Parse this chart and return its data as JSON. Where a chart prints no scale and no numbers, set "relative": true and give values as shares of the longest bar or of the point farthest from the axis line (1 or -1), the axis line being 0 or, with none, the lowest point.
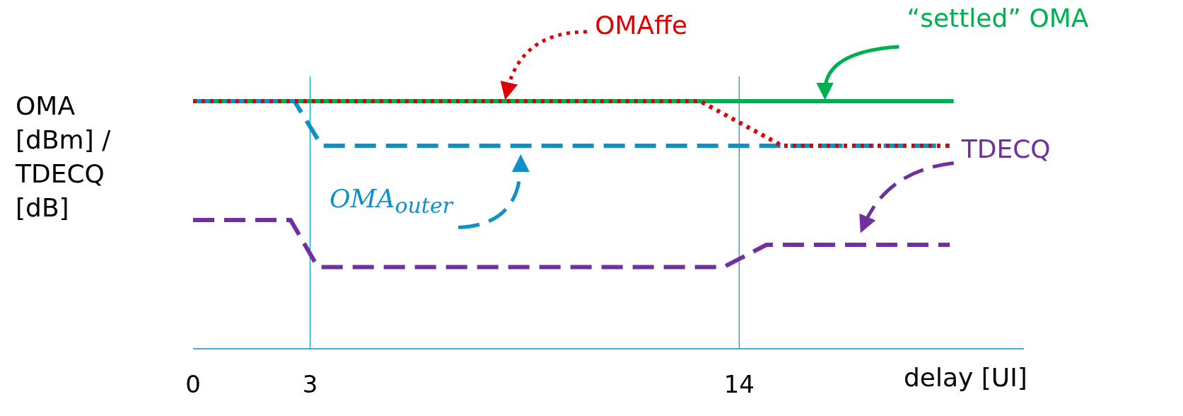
{
  "chart_data": {
    "type": "line",
    "relative": true,
    "ylabel": "OMA [dBm] / TDECQ [dB]",
    "xlabel": "delay [UI]",
    "xlim": [
      0,
      21.3
    ],
    "xticks": [
      0,
      3,
      14
    ],
    "ref_lines": [
      {
        "axis": "x",
        "value": 3,
        "color": "#0e90c8"
      },
      {
        "axis": "x",
        "value": 14,
        "color": "#0e90c8"
      }
    ],
    "marker": "none",
    "series": [
      {
        "name": "“settled” OMA",
        "color": "#00b050",
        "line_style": "solid",
        "x": [
          0,
          19.5
        ],
        "values": [
          1,
          1
        ]
      },
      {
        "name": "OMA$_{outer}$",
        "color": "#0e90c8",
        "line_style": "dashed",
        "x": [
          0,
          2.6,
          3.3,
          19.4
        ],
        "values": [
          1,
          1,
          0.82,
          0.82
        ]
      },
      {
        "name": "TDECQ",
        "color": "#7030a0",
        "line_style": "dashed",
        "x": [
          0,
          2.5,
          3.2,
          13.6,
          14.7,
          19.4
        ],
        "values": [
          0.52,
          0.52,
          0.33,
          0.33,
          0.42,
          0.42
        ]
      },
      {
        "name": "OMAffe",
        "color": "#e00000",
        "line_style": "dotted",
        "x": [
          0,
          13.0,
          15.1,
          19.4
        ],
        "values": [
          1,
          1,
          0.82,
          0.82
        ]
      }
    ]
  }
}
